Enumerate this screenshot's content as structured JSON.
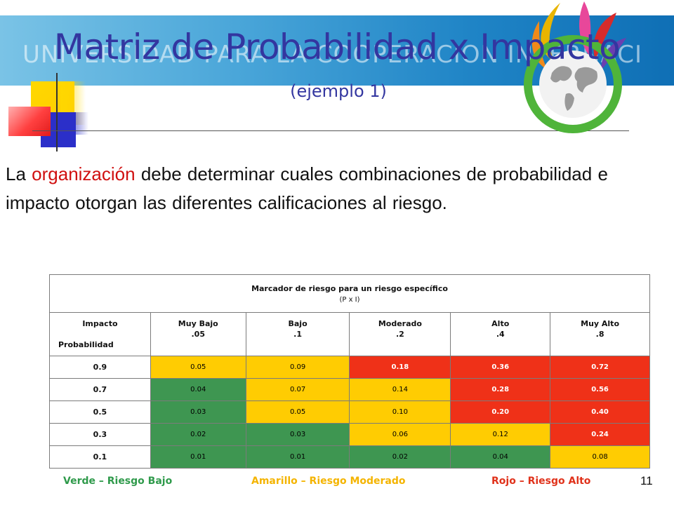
{
  "slide": {
    "banner_text": "UNIVERSIDAD PARA LA COOPERACION INTERNACIONAL",
    "title": "Matriz de Probabilidad x Impacto",
    "subtitle": "(ejemplo 1)",
    "page_number": "11"
  },
  "paragraph": {
    "before": "La ",
    "highlight": "organización",
    "after": " debe determinar cuales combinaciones  de probabilidad e impacto otorgan las diferentes calificaciones al riesgo.",
    "highlight_color": "#d01010"
  },
  "table": {
    "title": "Marcador de riesgo para un riesgo específico",
    "subtitle": "(P x I)",
    "impacto_label": "Impacto",
    "probabilidad_label": "Probabilidad",
    "columns": [
      {
        "name": "Muy Bajo",
        "value": ".05"
      },
      {
        "name": "Bajo",
        "value": ".1"
      },
      {
        "name": "Moderado",
        "value": ".2"
      },
      {
        "name": "Alto",
        "value": ".4"
      },
      {
        "name": "Muy Alto",
        "value": ".8"
      }
    ],
    "rows": [
      {
        "label": "0.9",
        "cells": [
          "0.05",
          "0.09",
          "0.18",
          "0.36",
          "0.72"
        ],
        "levels": [
          "y",
          "y",
          "r",
          "r",
          "r"
        ]
      },
      {
        "label": "0.7",
        "cells": [
          "0.04",
          "0.07",
          "0.14",
          "0.28",
          "0.56"
        ],
        "levels": [
          "g",
          "y",
          "y",
          "r",
          "r"
        ]
      },
      {
        "label": "0.5",
        "cells": [
          "0.03",
          "0.05",
          "0.10",
          "0.20",
          "0.40"
        ],
        "levels": [
          "g",
          "y",
          "y",
          "r",
          "r"
        ]
      },
      {
        "label": "0.3",
        "cells": [
          "0.02",
          "0.03",
          "0.06",
          "0.12",
          "0.24"
        ],
        "levels": [
          "g",
          "g",
          "y",
          "y",
          "r"
        ]
      },
      {
        "label": "0.1",
        "cells": [
          "0.01",
          "0.01",
          "0.02",
          "0.04",
          "0.08"
        ],
        "levels": [
          "g",
          "g",
          "g",
          "g",
          "y"
        ]
      }
    ],
    "colors": {
      "green": "#3e9651",
      "yellow": "#ffcc02",
      "red": "#ef3118"
    }
  },
  "legend": {
    "green": "Verde – Riesgo Bajo",
    "yellow": "Amarillo – Riesgo Moderado",
    "red": "Rojo – Riesgo Alto"
  }
}
